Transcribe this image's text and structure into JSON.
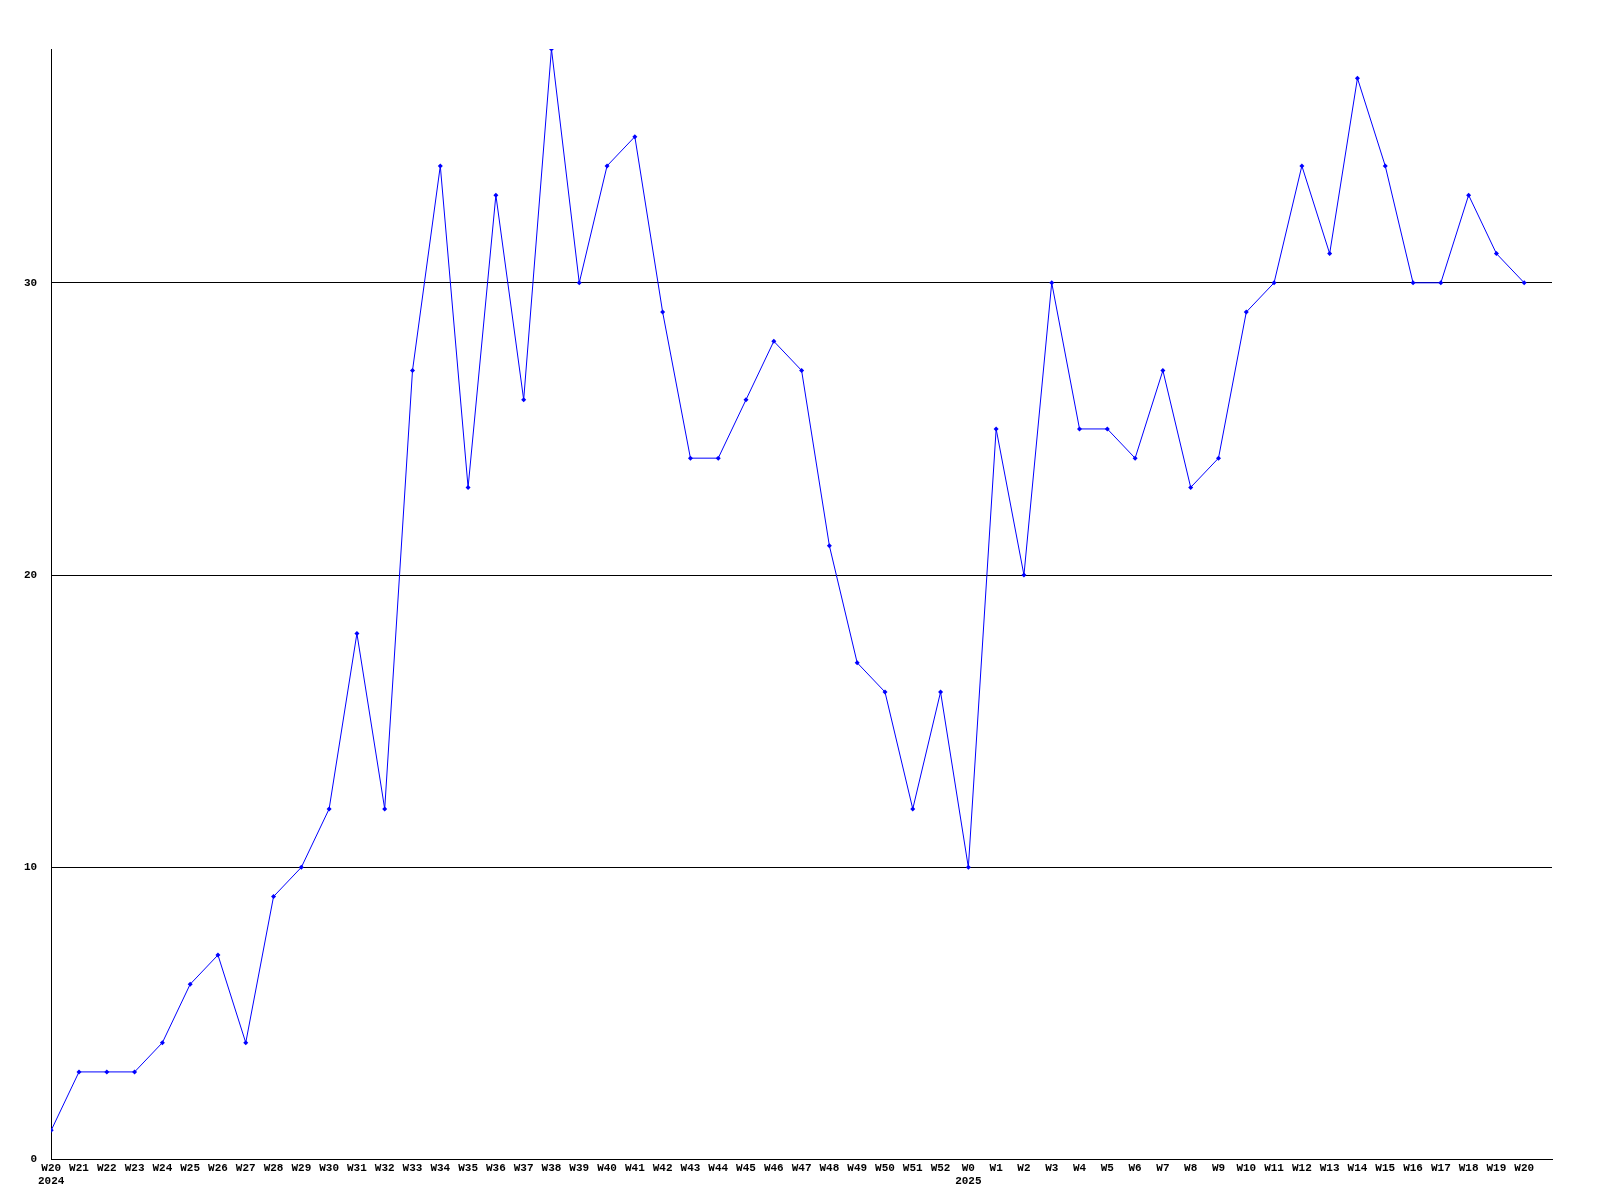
{
  "chart_data": {
    "type": "line",
    "categories": [
      "W20\n2024",
      "W21",
      "W22",
      "W23",
      "W24",
      "W25",
      "W26",
      "W27",
      "W28",
      "W29",
      "W30",
      "W31",
      "W32",
      "W33",
      "W34",
      "W35",
      "W36",
      "W37",
      "W38",
      "W39",
      "W40",
      "W41",
      "W42",
      "W43",
      "W44",
      "W45",
      "W46",
      "W47",
      "W48",
      "W49",
      "W50",
      "W51",
      "W52",
      "W0\n2025",
      "W1",
      "W2",
      "W3",
      "W4",
      "W5",
      "W6",
      "W7",
      "W8",
      "W9",
      "W10",
      "W11",
      "W12",
      "W13",
      "W14",
      "W15",
      "W16",
      "W17",
      "W18",
      "W19",
      "W20"
    ],
    "series": [
      {
        "color": "#0000ff",
        "values": [
          1,
          3,
          3,
          3,
          4,
          6,
          7,
          4,
          9,
          10,
          12,
          18,
          12,
          27,
          34,
          23,
          33,
          26,
          38,
          30,
          34,
          35,
          29,
          24,
          24,
          26,
          28,
          27,
          21,
          17,
          16,
          12,
          16,
          10,
          25,
          20,
          30,
          25,
          25,
          24,
          27,
          23,
          24,
          29,
          30,
          34,
          31,
          37,
          34,
          30,
          30,
          33,
          31,
          30
        ]
      }
    ],
    "ylim": [
      0,
      38
    ],
    "yticks": [
      0,
      10,
      20,
      30
    ],
    "grid": "y",
    "legend": false,
    "marker": "diamond",
    "line_style": "solid"
  }
}
